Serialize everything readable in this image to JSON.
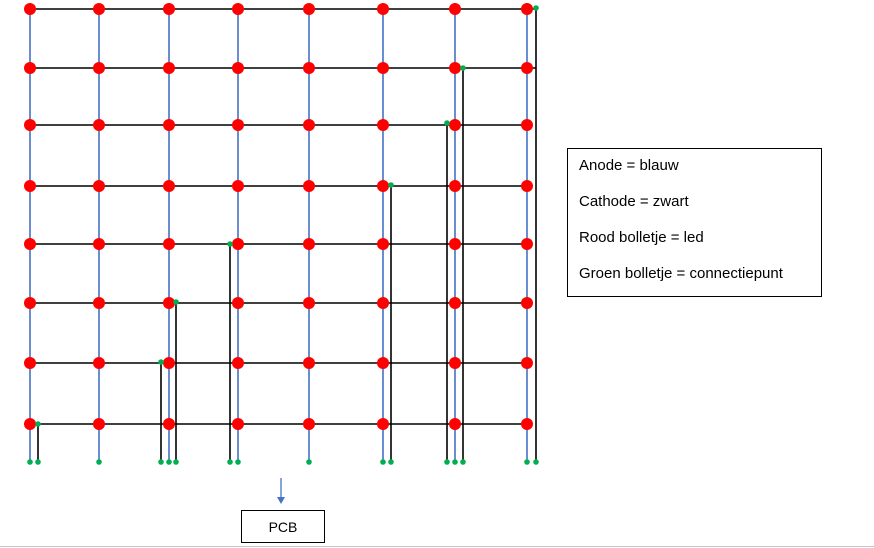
{
  "legend": {
    "anode": "Anode = blauw",
    "cathode": "Cathode = zwart",
    "led": "Rood bolletje = led",
    "connection": "Groen bolletje = connectiepunt"
  },
  "pcb_label": "PCB",
  "colors": {
    "anode": "#4472c4",
    "cathode": "#000000",
    "led": "#ff0000",
    "connection": "#00b050",
    "arrow": "#4472c4"
  },
  "grid": {
    "columns": 8,
    "rows": 8
  }
}
